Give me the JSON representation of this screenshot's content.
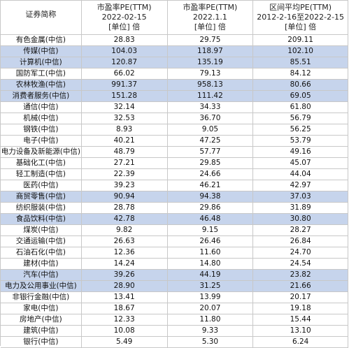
{
  "table": {
    "header": {
      "col0": [
        "证券简称"
      ],
      "col1": [
        "市盈率PE(TTM)",
        "2022-02-15",
        "[单位] 倍"
      ],
      "col2": [
        "市盈率PE(TTM)",
        "2022.1.1",
        "[单位] 倍"
      ],
      "col3": [
        "区间平均PE(TTM)",
        "2012-2-16至2022-2-15",
        "[单位] 倍"
      ]
    },
    "highlight_color": "#c6d4ec",
    "rows": [
      {
        "name": "有色金属(中信)",
        "pe_20220215": "28.83",
        "pe_20220101": "29.75",
        "avg_pe": "209.11",
        "highlight": false
      },
      {
        "name": "传媒(中信)",
        "pe_20220215": "104.03",
        "pe_20220101": "118.97",
        "avg_pe": "102.10",
        "highlight": true
      },
      {
        "name": "计算机(中信)",
        "pe_20220215": "120.87",
        "pe_20220101": "135.19",
        "avg_pe": "85.51",
        "highlight": true
      },
      {
        "name": "国防军工(中信)",
        "pe_20220215": "66.02",
        "pe_20220101": "79.13",
        "avg_pe": "84.12",
        "highlight": false
      },
      {
        "name": "农林牧渔(中信)",
        "pe_20220215": "991.37",
        "pe_20220101": "958.13",
        "avg_pe": "80.66",
        "highlight": true
      },
      {
        "name": "消费者服务(中信)",
        "pe_20220215": "151.28",
        "pe_20220101": "111.42",
        "avg_pe": "69.05",
        "highlight": true
      },
      {
        "name": "通信(中信)",
        "pe_20220215": "32.14",
        "pe_20220101": "34.33",
        "avg_pe": "61.80",
        "highlight": false
      },
      {
        "name": "机械(中信)",
        "pe_20220215": "32.53",
        "pe_20220101": "36.70",
        "avg_pe": "56.79",
        "highlight": false
      },
      {
        "name": "钢铁(中信)",
        "pe_20220215": "8.93",
        "pe_20220101": "9.05",
        "avg_pe": "56.25",
        "highlight": false
      },
      {
        "name": "电子(中信)",
        "pe_20220215": "40.21",
        "pe_20220101": "47.25",
        "avg_pe": "53.79",
        "highlight": false
      },
      {
        "name": "电力设备及新能源(中信)",
        "pe_20220215": "48.79",
        "pe_20220101": "57.77",
        "avg_pe": "49.16",
        "highlight": false
      },
      {
        "name": "基础化工(中信)",
        "pe_20220215": "27.21",
        "pe_20220101": "29.85",
        "avg_pe": "45.07",
        "highlight": false
      },
      {
        "name": "轻工制造(中信)",
        "pe_20220215": "22.39",
        "pe_20220101": "24.66",
        "avg_pe": "44.04",
        "highlight": false
      },
      {
        "name": "医药(中信)",
        "pe_20220215": "39.23",
        "pe_20220101": "46.21",
        "avg_pe": "42.97",
        "highlight": false
      },
      {
        "name": "商贸零售(中信)",
        "pe_20220215": "90.94",
        "pe_20220101": "94.38",
        "avg_pe": "37.03",
        "highlight": true
      },
      {
        "name": "纺织服装(中信)",
        "pe_20220215": "28.78",
        "pe_20220101": "29.86",
        "avg_pe": "31.89",
        "highlight": false
      },
      {
        "name": "食品饮料(中信)",
        "pe_20220215": "42.78",
        "pe_20220101": "46.48",
        "avg_pe": "30.80",
        "highlight": true
      },
      {
        "name": "煤炭(中信)",
        "pe_20220215": "9.82",
        "pe_20220101": "9.15",
        "avg_pe": "28.27",
        "highlight": false
      },
      {
        "name": "交通运输(中信)",
        "pe_20220215": "26.63",
        "pe_20220101": "26.46",
        "avg_pe": "26.84",
        "highlight": false
      },
      {
        "name": "石油石化(中信)",
        "pe_20220215": "12.36",
        "pe_20220101": "11.60",
        "avg_pe": "24.70",
        "highlight": false
      },
      {
        "name": "建材(中信)",
        "pe_20220215": "14.24",
        "pe_20220101": "14.80",
        "avg_pe": "24.54",
        "highlight": false
      },
      {
        "name": "汽车(中信)",
        "pe_20220215": "39.26",
        "pe_20220101": "44.19",
        "avg_pe": "23.82",
        "highlight": true
      },
      {
        "name": "电力及公用事业(中信)",
        "pe_20220215": "28.90",
        "pe_20220101": "31.25",
        "avg_pe": "21.66",
        "highlight": true
      },
      {
        "name": "非银行金融(中信)",
        "pe_20220215": "13.41",
        "pe_20220101": "13.99",
        "avg_pe": "20.17",
        "highlight": false
      },
      {
        "name": "家电(中信)",
        "pe_20220215": "18.67",
        "pe_20220101": "20.07",
        "avg_pe": "19.18",
        "highlight": false
      },
      {
        "name": "房地产(中信)",
        "pe_20220215": "12.33",
        "pe_20220101": "11.80",
        "avg_pe": "15.44",
        "highlight": false
      },
      {
        "name": "建筑(中信)",
        "pe_20220215": "10.08",
        "pe_20220101": "9.33",
        "avg_pe": "13.10",
        "highlight": false
      },
      {
        "name": "银行(中信)",
        "pe_20220215": "5.49",
        "pe_20220101": "5.30",
        "avg_pe": "6.24",
        "highlight": false
      }
    ]
  }
}
